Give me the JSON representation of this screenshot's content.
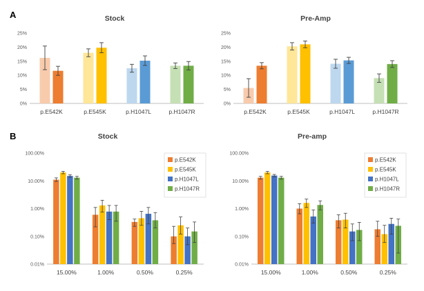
{
  "panels": [
    {
      "letter": "A"
    },
    {
      "letter": "B"
    }
  ],
  "chart_data": [
    {
      "type": "bar",
      "panel": "A",
      "title": "Stock",
      "scale": "linear",
      "ylim": [
        0,
        25
      ],
      "yticks": [
        0,
        5,
        10,
        15,
        20,
        25
      ],
      "ytick_labels": [
        "0%",
        "5%",
        "10%",
        "15%",
        "20%",
        "25%"
      ],
      "grid": false,
      "legend": "none",
      "categories": [
        "p.E542K",
        "p.E545K",
        "p.H1047L",
        "p.H1047R"
      ],
      "groups": [
        {
          "values": [
            16.2,
            11.6
          ],
          "errors": [
            4.2,
            1.6
          ],
          "colors": [
            "#F8CBAD",
            "#ED7D31"
          ]
        },
        {
          "values": [
            18.0,
            19.8
          ],
          "errors": [
            1.4,
            1.8
          ],
          "colors": [
            "#FFE699",
            "#FFC000"
          ]
        },
        {
          "values": [
            12.5,
            15.2
          ],
          "errors": [
            1.4,
            1.7
          ],
          "colors": [
            "#BDD7EE",
            "#5B9BD5"
          ]
        },
        {
          "values": [
            13.4,
            13.4
          ],
          "errors": [
            1.0,
            1.5
          ],
          "colors": [
            "#C5E0B4",
            "#70AD47"
          ]
        }
      ]
    },
    {
      "type": "bar",
      "panel": "A",
      "title": "Pre-Amp",
      "scale": "linear",
      "ylim": [
        0,
        25
      ],
      "yticks": [
        0,
        5,
        10,
        15,
        20,
        25
      ],
      "ytick_labels": [
        "0%",
        "5%",
        "10%",
        "15%",
        "20%",
        "25%"
      ],
      "grid": false,
      "legend": "none",
      "categories": [
        "p.E542K",
        "p.E545K",
        "p.H1047L",
        "p.H1047R"
      ],
      "groups": [
        {
          "values": [
            5.5,
            13.4
          ],
          "errors": [
            3.3,
            1.1
          ],
          "colors": [
            "#F8CBAD",
            "#ED7D31"
          ]
        },
        {
          "values": [
            20.3,
            21.0
          ],
          "errors": [
            1.3,
            1.2
          ],
          "colors": [
            "#FFE699",
            "#FFC000"
          ]
        },
        {
          "values": [
            14.1,
            15.3
          ],
          "errors": [
            1.6,
            1.1
          ],
          "colors": [
            "#BDD7EE",
            "#5B9BD5"
          ]
        },
        {
          "values": [
            9.0,
            14.0
          ],
          "errors": [
            1.5,
            1.2
          ],
          "colors": [
            "#C5E0B4",
            "#70AD47"
          ]
        }
      ]
    },
    {
      "type": "bar",
      "panel": "B",
      "title": "Stock",
      "scale": "log",
      "ylim": [
        0.01,
        100
      ],
      "yticks": [
        0.01,
        0.1,
        1,
        10,
        100
      ],
      "ytick_labels": [
        "0.01%",
        "0.10%",
        "1.00%",
        "10.00%",
        "100.00%"
      ],
      "grid": false,
      "legend": "top-right",
      "categories": [
        "15.00%",
        "1.00%",
        "0.50%",
        "0.25%"
      ],
      "series": [
        {
          "name": "p.E542K",
          "color": "#ED7D31",
          "values": [
            11.0,
            0.6,
            0.33,
            0.1
          ],
          "err_low": [
            9.5,
            0.22,
            0.23,
            0.055
          ],
          "err_high": [
            12.8,
            1.1,
            0.42,
            0.23
          ]
        },
        {
          "name": "p.E545K",
          "color": "#FFC000",
          "values": [
            20.0,
            1.3,
            0.45,
            0.25
          ],
          "err_low": [
            18.0,
            0.75,
            0.25,
            0.12
          ],
          "err_high": [
            22.0,
            2.0,
            0.8,
            0.5
          ]
        },
        {
          "name": "p.H1047L",
          "color": "#4472C4",
          "values": [
            15.0,
            0.78,
            0.65,
            0.1
          ],
          "err_low": [
            13.5,
            0.4,
            0.28,
            0.05
          ],
          "err_high": [
            16.5,
            1.3,
            1.1,
            0.2
          ]
        },
        {
          "name": "p.H1047R",
          "color": "#70AD47",
          "values": [
            13.0,
            0.78,
            0.38,
            0.15
          ],
          "err_low": [
            11.5,
            0.35,
            0.2,
            0.06
          ],
          "err_high": [
            14.5,
            1.3,
            0.72,
            0.33
          ]
        }
      ]
    },
    {
      "type": "bar",
      "panel": "B",
      "title": "Pre-amp",
      "scale": "log",
      "ylim": [
        0.01,
        100
      ],
      "yticks": [
        0.01,
        0.1,
        1,
        10,
        100
      ],
      "ytick_labels": [
        "0.01%",
        "0.10%",
        "1.00%",
        "10.00%",
        "100.00%"
      ],
      "grid": false,
      "legend": "top-right",
      "categories": [
        "15.00%",
        "1.00%",
        "0.50%",
        "0.25%"
      ],
      "series": [
        {
          "name": "p.E542K",
          "color": "#ED7D31",
          "values": [
            13.0,
            1.0,
            0.38,
            0.18
          ],
          "err_low": [
            11.5,
            0.65,
            0.2,
            0.1
          ],
          "err_high": [
            14.5,
            1.5,
            0.6,
            0.35
          ]
        },
        {
          "name": "p.E545K",
          "color": "#FFC000",
          "values": [
            20.0,
            1.6,
            0.4,
            0.12
          ],
          "err_low": [
            18.0,
            1.1,
            0.2,
            0.06
          ],
          "err_high": [
            22.0,
            2.2,
            0.68,
            0.25
          ]
        },
        {
          "name": "p.H1047L",
          "color": "#4472C4",
          "values": [
            15.5,
            0.52,
            0.15,
            0.28
          ],
          "err_low": [
            14.0,
            0.3,
            0.07,
            0.12
          ],
          "err_high": [
            17.0,
            0.9,
            0.28,
            0.45
          ]
        },
        {
          "name": "p.H1047R",
          "color": "#70AD47",
          "values": [
            13.0,
            1.35,
            0.17,
            0.24
          ],
          "err_low": [
            11.5,
            0.9,
            0.07,
            0.025
          ],
          "err_high": [
            14.5,
            1.9,
            0.32,
            0.42
          ]
        }
      ]
    }
  ]
}
